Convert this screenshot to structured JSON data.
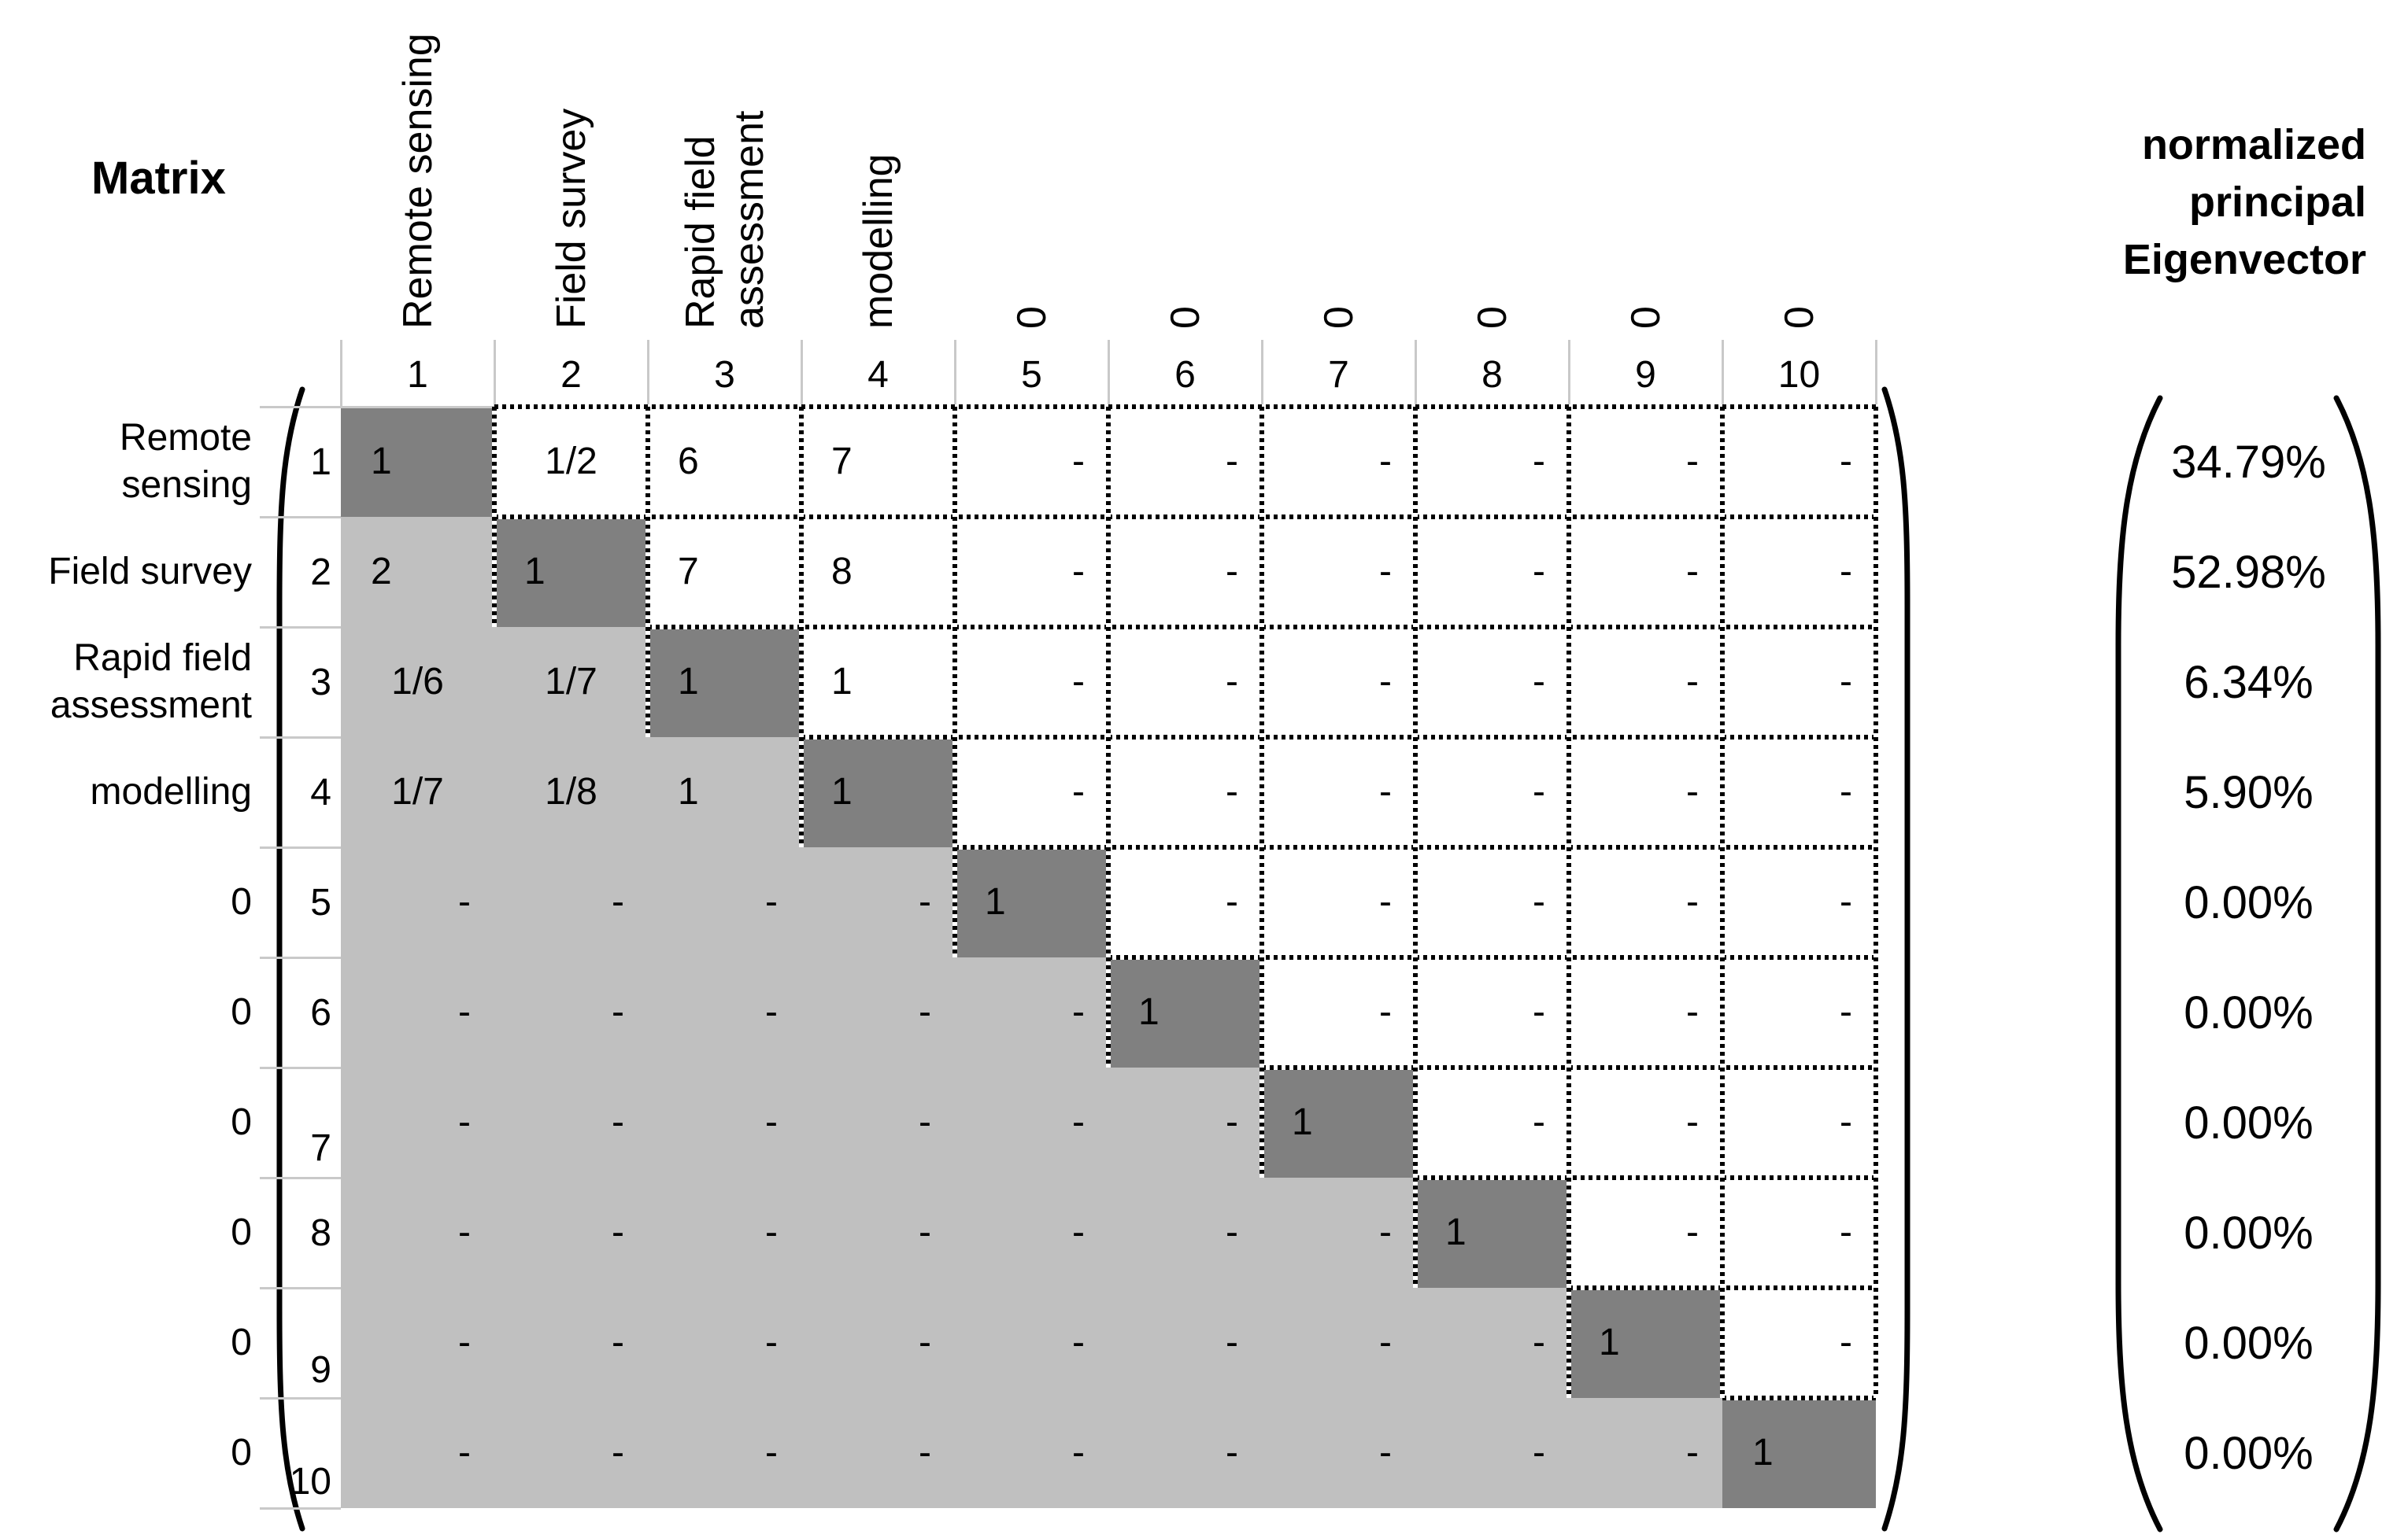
{
  "title": "Matrix",
  "eigenvector_title": "normalized\nprincipal\nEigenvector",
  "column_header_labels": [
    "Remote sensing",
    "Field survey",
    "Rapid field\nassessment",
    "modelling",
    "0",
    "0",
    "0",
    "0",
    "0",
    "0"
  ],
  "column_numbers": [
    "1",
    "2",
    "3",
    "4",
    "5",
    "6",
    "7",
    "8",
    "9",
    "10"
  ],
  "row_header_labels": [
    "Remote\nsensing",
    "Field survey",
    "Rapid field\nassessment",
    "modelling",
    "0",
    "0",
    "0",
    "0",
    "0",
    "0"
  ],
  "row_numbers": [
    "1",
    "2",
    "3",
    "4",
    "5",
    "6",
    "7",
    "8",
    "9",
    "10"
  ],
  "matrix_values": [
    [
      "1",
      "1/2",
      "6",
      "7",
      "-",
      "-",
      "-",
      "-",
      "-",
      "-"
    ],
    [
      "2",
      "1",
      "7",
      "8",
      "-",
      "-",
      "-",
      "-",
      "-",
      "-"
    ],
    [
      "1/6",
      "1/7",
      "1",
      "1",
      "-",
      "-",
      "-",
      "-",
      "-",
      "-"
    ],
    [
      "1/7",
      "1/8",
      "1",
      "1",
      "-",
      "-",
      "-",
      "-",
      "-",
      "-"
    ],
    [
      "-",
      "-",
      "-",
      "-",
      "1",
      "-",
      "-",
      "-",
      "-",
      "-"
    ],
    [
      "-",
      "-",
      "-",
      "-",
      "-",
      "1",
      "-",
      "-",
      "-",
      "-"
    ],
    [
      "-",
      "-",
      "-",
      "-",
      "-",
      "-",
      "1",
      "-",
      "-",
      "-"
    ],
    [
      "-",
      "-",
      "-",
      "-",
      "-",
      "-",
      "-",
      "1",
      "-",
      "-"
    ],
    [
      "-",
      "-",
      "-",
      "-",
      "-",
      "-",
      "-",
      "-",
      "1",
      "-"
    ],
    [
      "-",
      "-",
      "-",
      "-",
      "-",
      "-",
      "-",
      "-",
      "-",
      "1"
    ]
  ],
  "eigenvector_values": [
    "34.79%",
    "52.98%",
    "6.34%",
    "5.90%",
    "0.00%",
    "0.00%",
    "0.00%",
    "0.00%",
    "0.00%",
    "0.00%"
  ],
  "colors": {
    "diagonal_fill": "#808080",
    "lower_triangle_fill": "#c0c0c0",
    "upper_triangle_fill": "#ffffff",
    "gridline": "#c9c9c9",
    "dotted_border": "#000000",
    "text": "#000000"
  }
}
